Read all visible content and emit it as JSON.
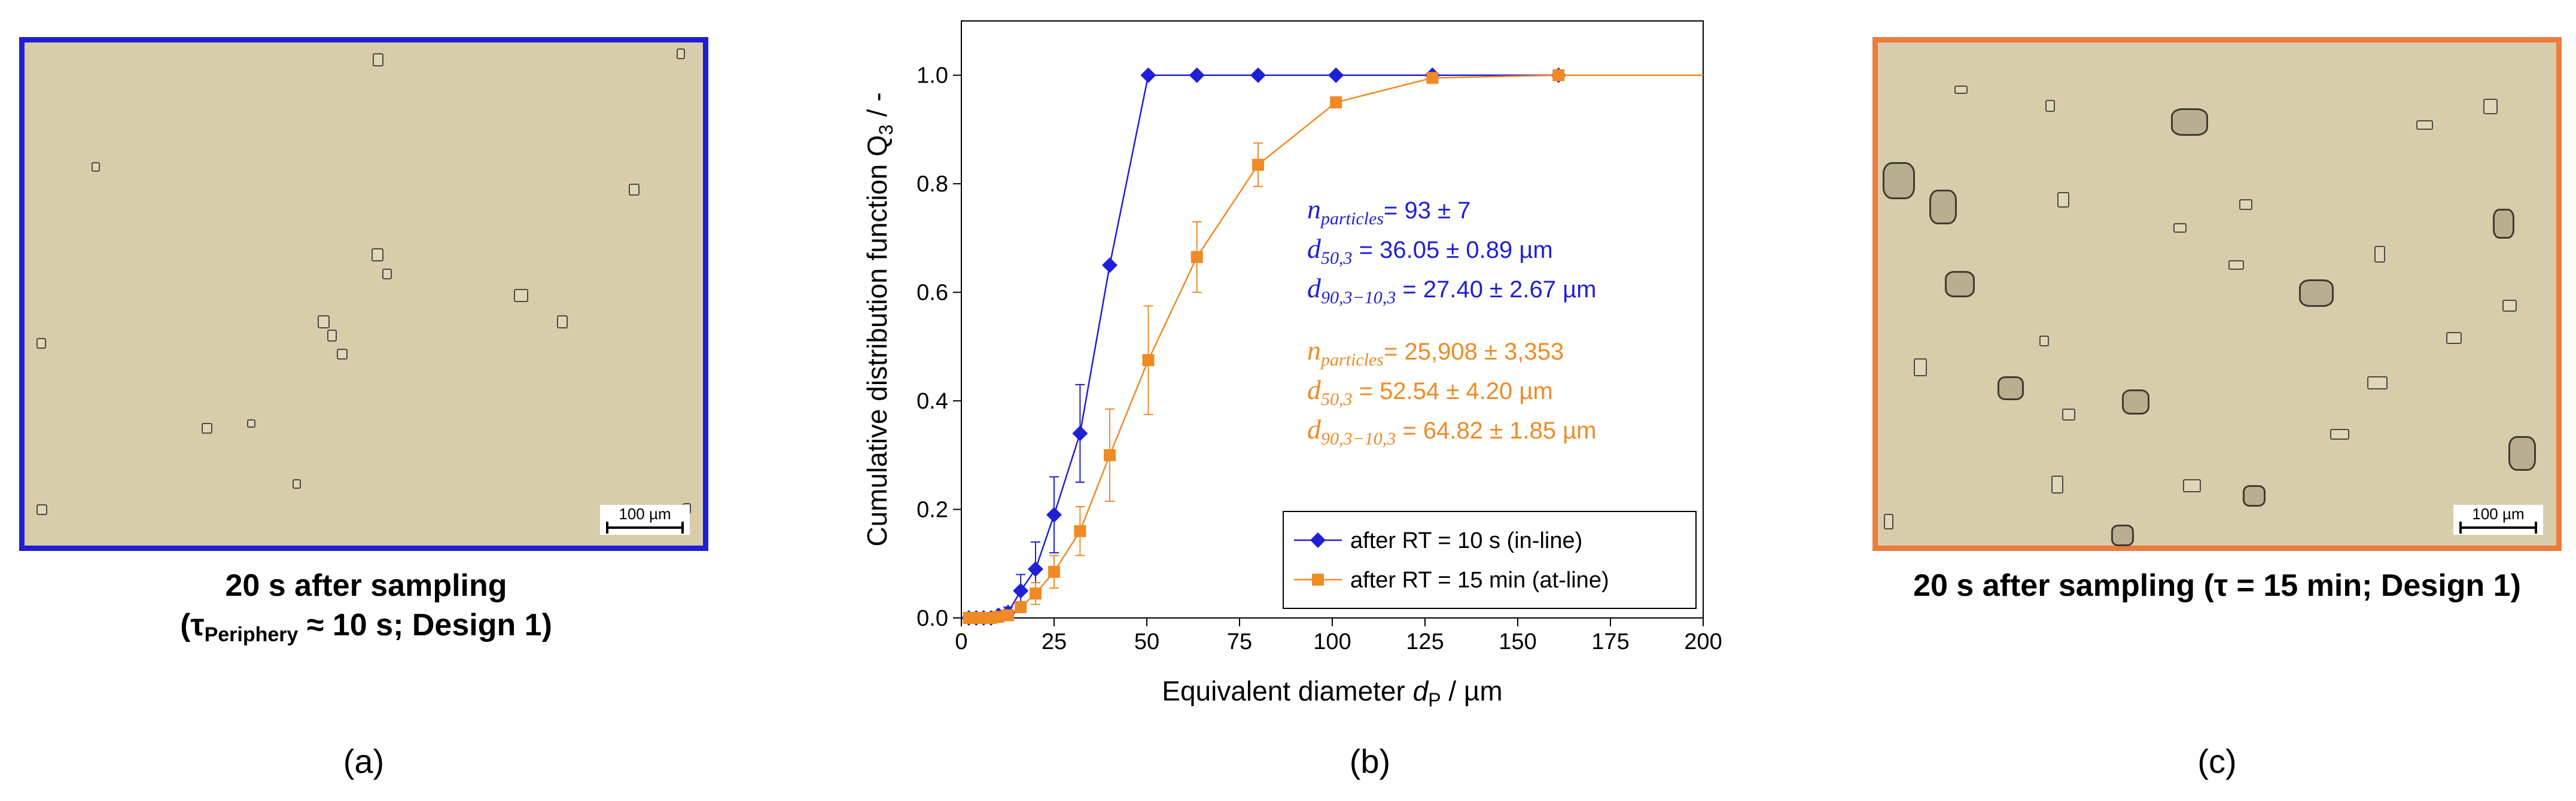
{
  "panels": {
    "a": {
      "scale_label": "100 µm",
      "caption_line1": "20 s after sampling",
      "caption_tau": "(τ",
      "caption_sub": "Periphery",
      "caption_rest": " ≈ 10 s; Design 1)",
      "label": "(a)",
      "border_color": "#1f1fd6"
    },
    "b": {
      "label": "(b)"
    },
    "c": {
      "scale_label": "100 µm",
      "caption": "20 s after sampling (τ = 15 min; Design 1)",
      "label": "(c)",
      "border_color": "#ea7c3c"
    }
  },
  "chart_data": {
    "type": "line",
    "xlabel_text": "Equivalent diameter ",
    "xlabel_var": "d",
    "xlabel_sub": "P",
    "xlabel_unit": " / µm",
    "ylabel_text": "Cumulative distribution function Q",
    "ylabel_sub": "3",
    "ylabel_unit": " / -",
    "xlim": [
      0,
      200
    ],
    "ylim": [
      0,
      1.1
    ],
    "xticks": [
      0,
      25,
      50,
      75,
      100,
      125,
      150,
      175,
      200
    ],
    "yticks": [
      0.0,
      0.2,
      0.4,
      0.6,
      0.8,
      1.0
    ],
    "series": [
      {
        "name": "after RT = 10 s (in-line)",
        "color": "#1f1fd6",
        "marker": "diamond",
        "x": [
          2,
          4,
          6,
          8,
          10,
          12.6,
          16,
          20,
          25,
          32,
          40,
          50.4,
          63.5,
          80,
          101,
          127,
          161,
          200
        ],
        "y": [
          0.0,
          0.0,
          0.0,
          0.0,
          0.005,
          0.01,
          0.05,
          0.09,
          0.19,
          0.34,
          0.65,
          1.0,
          1.0,
          1.0,
          1.0,
          1.0,
          1.0,
          1.0
        ],
        "err": [
          0,
          0,
          0,
          0,
          0.005,
          0.01,
          0.03,
          0.05,
          0.07,
          0.09,
          0,
          0,
          0,
          0,
          0,
          0,
          0,
          0
        ],
        "markers_until": 161
      },
      {
        "name": "after RT = 15 min (at-line)",
        "color": "#f08a24",
        "marker": "square",
        "x": [
          2,
          4,
          6,
          8,
          10,
          12.6,
          16,
          20,
          25,
          32,
          40,
          50.4,
          63.5,
          80,
          101,
          127,
          161,
          200
        ],
        "y": [
          0.0,
          0.0,
          0.0,
          0.0,
          0.002,
          0.005,
          0.02,
          0.045,
          0.085,
          0.16,
          0.3,
          0.475,
          0.665,
          0.835,
          0.95,
          0.995,
          1.0,
          1.0
        ],
        "err": [
          0,
          0,
          0,
          0,
          0.003,
          0.005,
          0.01,
          0.02,
          0.03,
          0.045,
          0.085,
          0.1,
          0.065,
          0.04,
          0.01,
          0,
          0,
          0
        ],
        "markers_until": 161
      }
    ],
    "annotations": [
      {
        "color": "#1f1fd6",
        "lines": [
          {
            "var": "n",
            "sub": "particles",
            "text": "= 93 ± 7"
          },
          {
            "var": "d",
            "sub": "50,3",
            "text": " = 36.05 ± 0.89 µm"
          },
          {
            "var": "d",
            "sub": "90,3−10,3",
            "text": " = 27.40 ± 2.67 µm"
          }
        ]
      },
      {
        "color": "#f08a24",
        "lines": [
          {
            "var": "n",
            "sub": "particles",
            "text": "= 25,908 ± 3,353"
          },
          {
            "var": "d",
            "sub": "50,3",
            "text": " = 52.54 ± 4.20 µm"
          },
          {
            "var": "d",
            "sub": "90,3−10,3",
            "text": " = 64.82 ± 1.85 µm"
          }
        ]
      }
    ],
    "legend_position": "bottom-right"
  }
}
